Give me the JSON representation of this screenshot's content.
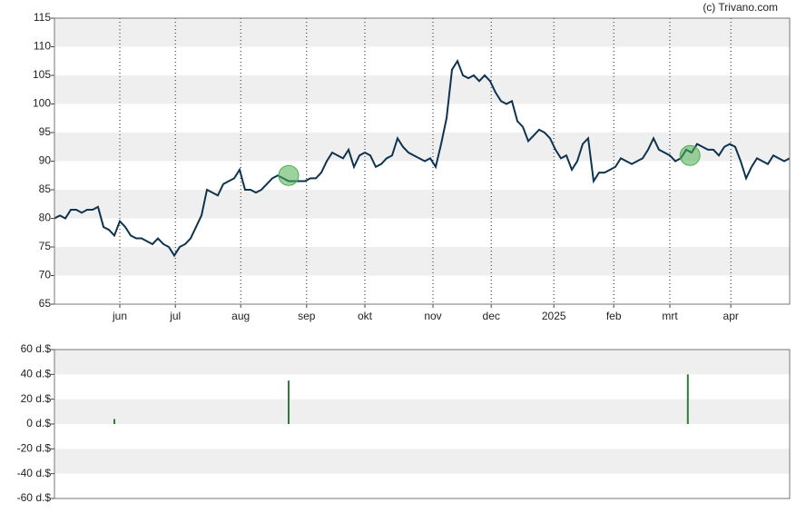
{
  "chart_data": [
    {
      "type": "line",
      "credit": "(c) Trivano.com",
      "color": "#0d3350",
      "values": [
        80,
        80.5,
        80,
        81.5,
        81.5,
        81,
        81.5,
        81.5,
        82,
        78.5,
        78,
        77,
        79.5,
        78.5,
        77,
        76.5,
        76.5,
        76,
        75.5,
        76.5,
        75.5,
        75,
        73.5,
        75,
        75.5,
        76.5,
        78.5,
        80.5,
        85,
        84.5,
        84,
        86,
        86.5,
        87,
        88.5,
        85,
        85,
        84.5,
        85,
        86,
        87,
        87.5,
        87,
        86.5,
        86.5,
        86.5,
        86.5,
        87,
        87,
        88,
        90,
        91.5,
        91,
        90.5,
        92,
        89,
        91,
        91.5,
        91,
        89,
        89.5,
        90.5,
        91,
        94,
        92.5,
        91.5,
        91,
        90.5,
        90,
        90.5,
        89,
        93,
        97.5,
        106,
        107.5,
        105,
        104.5,
        105,
        104,
        105,
        104,
        102,
        100.5,
        100,
        100.5,
        97,
        96,
        93.5,
        94.5,
        95.5,
        95,
        94,
        92,
        90.5,
        91,
        88.5,
        90,
        93,
        94,
        86.5,
        88,
        88,
        88.5,
        89,
        90.5,
        90,
        89.5,
        90,
        90.5,
        92,
        94,
        92,
        91.5,
        91,
        90,
        90.5,
        92,
        91.5,
        93,
        92.5,
        92,
        92,
        91,
        92.5,
        93,
        92.5,
        90,
        87,
        89,
        90.5,
        90,
        89.5,
        91,
        90.5,
        90,
        90.5
      ],
      "markers": [
        {
          "x": 43,
          "y": 87.5
        },
        {
          "x": 116.7,
          "y": 91
        }
      ],
      "marker_color": "#4caf50",
      "xlim": [
        0,
        135
      ],
      "xticks": [
        {
          "value": 12,
          "label": "jun"
        },
        {
          "value": 22.2,
          "label": "jul"
        },
        {
          "value": 34.2,
          "label": "aug"
        },
        {
          "value": 46.3,
          "label": "sep"
        },
        {
          "value": 57,
          "label": "okt"
        },
        {
          "value": 69.5,
          "label": "nov"
        },
        {
          "value": 80.2,
          "label": "dec"
        },
        {
          "value": 91.7,
          "label": "2025"
        },
        {
          "value": 102.7,
          "label": "feb"
        },
        {
          "value": 113,
          "label": "mrt"
        },
        {
          "value": 124.2,
          "label": "apr"
        }
      ],
      "ylim": [
        65,
        115
      ],
      "yticks": [
        65,
        70,
        75,
        80,
        85,
        90,
        95,
        100,
        105,
        110,
        115
      ],
      "grid": true
    },
    {
      "type": "bar",
      "color": "#2e7d32",
      "x": [
        11,
        43,
        116.3
      ],
      "values": [
        4,
        35,
        40
      ],
      "xlim": [
        0,
        135
      ],
      "ylim": [
        -60,
        60
      ],
      "yticks": [
        {
          "value": -60,
          "label": "-60 d.$"
        },
        {
          "value": -40,
          "label": "-40 d.$"
        },
        {
          "value": -20,
          "label": "-20 d.$"
        },
        {
          "value": 0,
          "label": "0 d.$"
        },
        {
          "value": 20,
          "label": "20 d.$"
        },
        {
          "value": 40,
          "label": "40 d.$"
        },
        {
          "value": 60,
          "label": "60 d.$"
        }
      ],
      "grid": true
    }
  ]
}
